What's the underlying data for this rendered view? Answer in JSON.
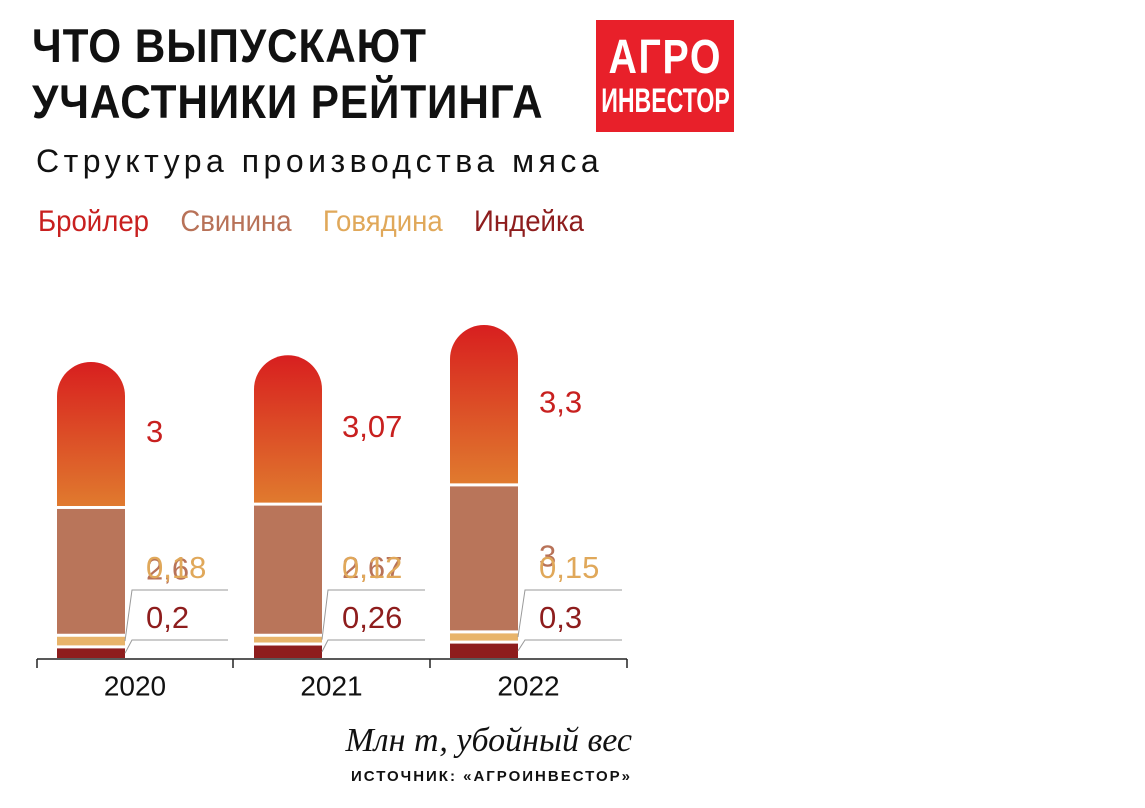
{
  "header": {
    "title_line1": "ЧТО ВЫПУСКАЮТ",
    "title_line2": "УЧАСТНИКИ РЕЙТИНГА",
    "subtitle": "Структура производства мяса"
  },
  "logo": {
    "line1": "АГРО",
    "line2": "ИНВЕСТОР",
    "color": "#e8202a"
  },
  "colors": {
    "broiler_top": "#d81f1f",
    "broiler_bottom": "#e07a2e",
    "pork": "#b9755a",
    "beef": "#e8b46a",
    "turkey": "#8e1d1d",
    "broiler_label": "#c8201f",
    "pork_label": "#b87258",
    "beef_label": "#e0a85a",
    "turkey_label": "#8e1d1d"
  },
  "footer": {
    "unit": "Млн т, убойный вес",
    "source": "ИСТОЧНИК: «АГРОИНВЕСТОР»"
  },
  "chart_data": {
    "type": "bar",
    "stacked": true,
    "categories": [
      "2020",
      "2021",
      "2022"
    ],
    "series": [
      {
        "name": "Индейка",
        "values": [
          0.2,
          0.26,
          0.3
        ],
        "labels": [
          "0,2",
          "0,26",
          "0,3"
        ]
      },
      {
        "name": "Говядина",
        "values": [
          0.18,
          0.12,
          0.15
        ],
        "labels": [
          "0,18",
          "0,12",
          "0,15"
        ]
      },
      {
        "name": "Свинина",
        "values": [
          2.6,
          2.67,
          3.0
        ],
        "labels": [
          "2,6",
          "2,67",
          "3"
        ]
      },
      {
        "name": "Бройлер",
        "values": [
          3.0,
          3.07,
          3.3
        ],
        "labels": [
          "3",
          "3,07",
          "3,3"
        ]
      }
    ],
    "legend_order": [
      "Бройлер",
      "Свинина",
      "Говядина",
      "Индейка"
    ],
    "legend_placement": "top-left",
    "grid": false
  }
}
